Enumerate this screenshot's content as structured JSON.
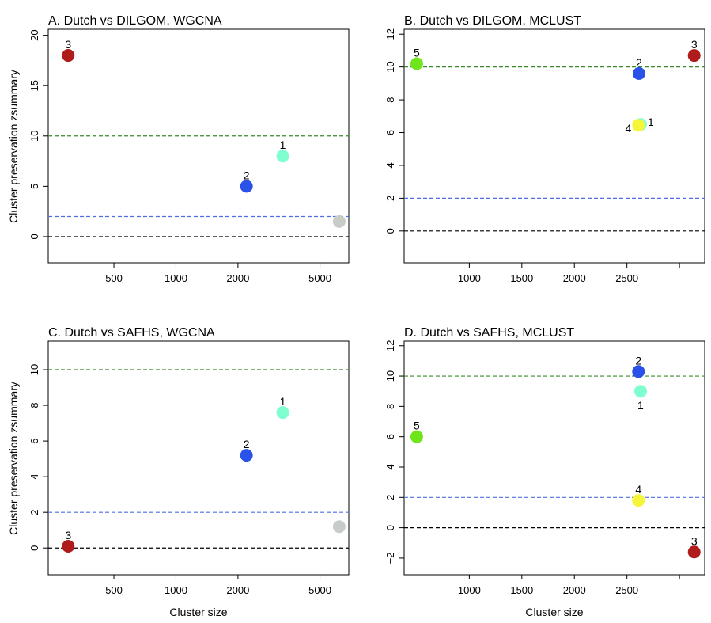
{
  "chart_data": [
    {
      "type": "scatter",
      "title": "A. Dutch vs DILGOM, WGCNA",
      "xlabel": "",
      "ylabel": "Cluster preservation zsummary",
      "xscale": "log",
      "xlim": [
        240,
        6900
      ],
      "ylim": [
        -2.6,
        20.6
      ],
      "xticks": [
        500,
        1000,
        2000,
        5000
      ],
      "xtick_labels": [
        "500",
        "1000",
        "2000",
        "5000"
      ],
      "yticks": [
        0,
        5,
        10,
        15,
        20
      ],
      "ytick_labels": [
        "0",
        "5",
        "10",
        "15",
        "20"
      ],
      "reference_lines": [
        {
          "y": 0,
          "color": "#000000"
        },
        {
          "y": 2,
          "color": "#4f6fe0"
        },
        {
          "y": 10,
          "color": "#3a8a2a"
        }
      ],
      "points": [
        {
          "label": "3",
          "x": 300,
          "y": 18,
          "color": "#b01c1c",
          "label_pos": "above"
        },
        {
          "label": "1",
          "x": 3300,
          "y": 8,
          "color": "#7fffd0",
          "label_pos": "above"
        },
        {
          "label": "2",
          "x": 2200,
          "y": 5,
          "color": "#2a52e8",
          "label_pos": "above"
        },
        {
          "label": "",
          "x": 6200,
          "y": 1.5,
          "color": "#c8ccc8",
          "label_pos": "above"
        }
      ]
    },
    {
      "type": "scatter",
      "title": "B. Dutch vs DILGOM, MCLUST",
      "xlabel": "",
      "ylabel": "",
      "xscale": "linear",
      "xlim": [
        380,
        3240
      ],
      "ylim": [
        -1.94,
        12.3
      ],
      "xticks": [
        1000,
        1500,
        2000,
        2500,
        3000
      ],
      "xtick_labels": [
        "1000",
        "1500",
        "2000",
        "2500",
        ""
      ],
      "yticks": [
        0,
        2,
        4,
        6,
        8,
        10,
        12
      ],
      "ytick_labels": [
        "0",
        "2",
        "4",
        "6",
        "8",
        "10",
        "12"
      ],
      "reference_lines": [
        {
          "y": 0,
          "color": "#000000"
        },
        {
          "y": 2,
          "color": "#4f6fe0"
        },
        {
          "y": 10,
          "color": "#3a8a2a"
        }
      ],
      "points": [
        {
          "label": "5",
          "x": 500,
          "y": 10.2,
          "color": "#6fe61c",
          "label_pos": "above"
        },
        {
          "label": "3",
          "x": 3140,
          "y": 10.7,
          "color": "#b01c1c",
          "label_pos": "above"
        },
        {
          "label": "2",
          "x": 2615,
          "y": 9.6,
          "color": "#2a52e8",
          "label_pos": "above"
        },
        {
          "label": "1",
          "x": 2630,
          "y": 6.5,
          "color": "#7fffd0",
          "label_pos": "right"
        },
        {
          "label": "4",
          "x": 2610,
          "y": 6.45,
          "color": "#f5f53a",
          "label_pos": "left"
        }
      ]
    },
    {
      "type": "scatter",
      "title": "C. Dutch vs SAFHS, WGCNA",
      "xlabel": "Cluster size",
      "ylabel": "Cluster preservation zsummary",
      "xscale": "log",
      "xlim": [
        240,
        6900
      ],
      "ylim": [
        -1.5,
        11.6
      ],
      "xticks": [
        500,
        1000,
        2000,
        5000
      ],
      "xtick_labels": [
        "500",
        "1000",
        "2000",
        "5000"
      ],
      "yticks": [
        0,
        2,
        4,
        6,
        8,
        10
      ],
      "ytick_labels": [
        "0",
        "2",
        "4",
        "6",
        "8",
        "10"
      ],
      "reference_lines": [
        {
          "y": 0,
          "color": "#000000"
        },
        {
          "y": 2,
          "color": "#4f6fe0"
        },
        {
          "y": 10,
          "color": "#3a8a2a"
        }
      ],
      "points": [
        {
          "label": "1",
          "x": 3300,
          "y": 7.6,
          "color": "#7fffd0",
          "label_pos": "above"
        },
        {
          "label": "2",
          "x": 2200,
          "y": 5.2,
          "color": "#2a52e8",
          "label_pos": "above"
        },
        {
          "label": "3",
          "x": 300,
          "y": 0.1,
          "color": "#b01c1c",
          "label_pos": "above"
        },
        {
          "label": "",
          "x": 6200,
          "y": 1.2,
          "color": "#c8ccc8",
          "label_pos": "above"
        }
      ]
    },
    {
      "type": "scatter",
      "title": "D. Dutch vs SAFHS, MCLUST",
      "xlabel": "Cluster size",
      "ylabel": "",
      "xscale": "linear",
      "xlim": [
        380,
        3240
      ],
      "ylim": [
        -3.1,
        12.3
      ],
      "xticks": [
        1000,
        1500,
        2000,
        2500,
        3000
      ],
      "xtick_labels": [
        "1000",
        "1500",
        "2000",
        "2500",
        ""
      ],
      "yticks": [
        -2,
        0,
        2,
        4,
        6,
        8,
        10,
        12
      ],
      "ytick_labels": [
        "−2",
        "0",
        "2",
        "4",
        "6",
        "8",
        "10",
        "12"
      ],
      "reference_lines": [
        {
          "y": 0,
          "color": "#000000"
        },
        {
          "y": 2,
          "color": "#4f6fe0"
        },
        {
          "y": 10,
          "color": "#3a8a2a"
        }
      ],
      "points": [
        {
          "label": "2",
          "x": 2610,
          "y": 10.3,
          "color": "#2a52e8",
          "label_pos": "above"
        },
        {
          "label": "1",
          "x": 2630,
          "y": 9.0,
          "color": "#7fffd0",
          "label_pos": "below"
        },
        {
          "label": "5",
          "x": 500,
          "y": 6.0,
          "color": "#6fe61c",
          "label_pos": "above"
        },
        {
          "label": "4",
          "x": 2610,
          "y": 1.8,
          "color": "#f5f53a",
          "label_pos": "above"
        },
        {
          "label": "3",
          "x": 3140,
          "y": -1.6,
          "color": "#b01c1c",
          "label_pos": "above"
        }
      ]
    }
  ]
}
